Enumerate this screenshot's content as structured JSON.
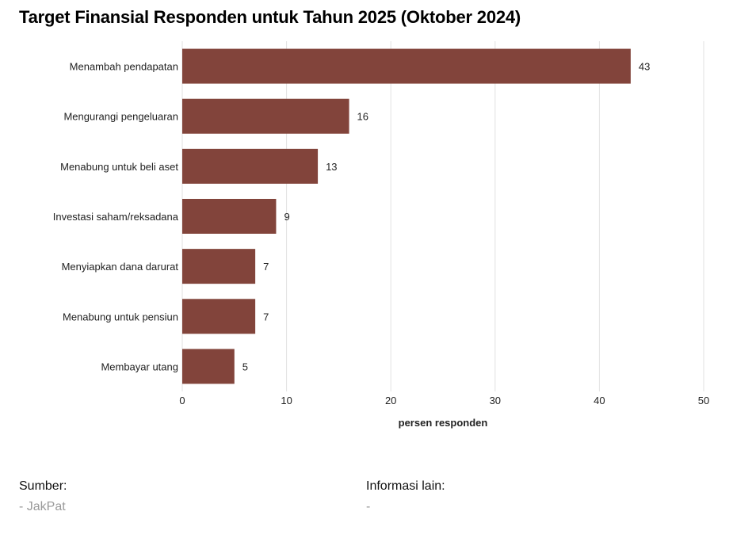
{
  "title": "Target Finansial Responden untuk Tahun 2025 (Oktober 2024)",
  "chart_data": {
    "type": "bar",
    "orientation": "horizontal",
    "title": "Target Finansial Responden untuk Tahun 2025 (Oktober 2024)",
    "categories": [
      "Menambah pendapatan",
      "Mengurangi pengeluaran",
      "Menabung untuk beli aset",
      "Investasi saham/reksadana",
      "Menyiapkan dana darurat",
      "Menabung untuk pensiun",
      "Membayar utang"
    ],
    "values": [
      43,
      16,
      13,
      9,
      7,
      7,
      5
    ],
    "xlabel": "persen responden",
    "ylabel": "",
    "xlim": [
      0,
      50
    ],
    "xticks": [
      0,
      10,
      20,
      30,
      40,
      50
    ],
    "grid": true,
    "bar_color": "#82443b"
  },
  "footer": {
    "source_label": "Sumber:",
    "source_value": "- JakPat",
    "info_label": "Informasi lain:",
    "info_value": "-"
  }
}
